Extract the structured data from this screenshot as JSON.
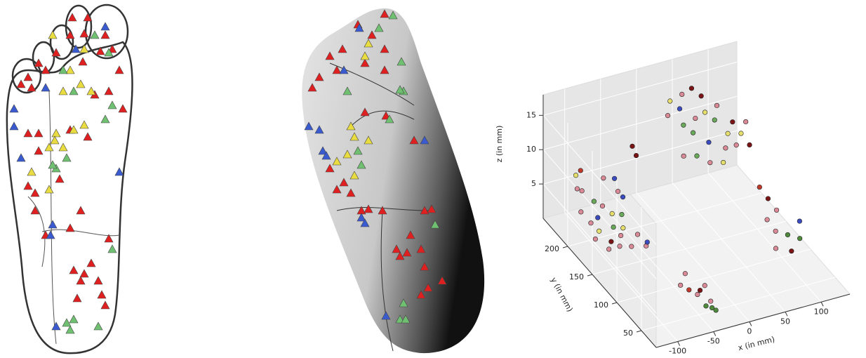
{
  "chart_data": {
    "type": "scatter3d",
    "xlabel": "x (in mm)",
    "ylabel": "y (in mm)",
    "zlabel": "z (in mm)",
    "xlim": [
      -130,
      140
    ],
    "ylim": [
      20,
      250
    ],
    "zlim": [
      0,
      18
    ],
    "xticks": [
      -100,
      -50,
      0,
      50,
      100
    ],
    "yticks": [
      50,
      100,
      150,
      200
    ],
    "zticks": [
      5,
      10,
      15
    ],
    "grid": true,
    "x": [
      -110,
      -105,
      -100,
      -95,
      -90,
      -115,
      -108,
      -100,
      -95,
      -85,
      -80,
      -75,
      -70,
      -65,
      -90,
      -85,
      -80,
      -72,
      -60,
      -55,
      -50,
      -112,
      -100,
      -60,
      -70,
      -58,
      -55,
      -50,
      -45,
      -40,
      -35,
      -30,
      -28,
      -45,
      -38,
      -33,
      -40,
      -38,
      -60,
      30,
      40,
      50,
      60,
      70,
      80,
      45,
      55,
      65,
      75,
      85,
      95,
      100,
      110,
      105,
      115,
      120,
      90,
      35,
      50,
      65,
      80,
      125,
      70,
      110,
      115,
      120,
      100,
      105,
      115,
      125,
      135,
      110,
      95
    ],
    "y": [
      210,
      220,
      215,
      225,
      205,
      195,
      185,
      180,
      190,
      195,
      180,
      190,
      175,
      185,
      170,
      160,
      165,
      155,
      160,
      150,
      155,
      170,
      160,
      200,
      215,
      210,
      80,
      70,
      60,
      50,
      45,
      55,
      70,
      85,
      65,
      40,
      200,
      195,
      190,
      230,
      240,
      235,
      245,
      240,
      235,
      220,
      215,
      225,
      220,
      215,
      225,
      210,
      215,
      200,
      205,
      195,
      200,
      205,
      200,
      195,
      190,
      210,
      205,
      160,
      150,
      140,
      130,
      120,
      110,
      100,
      115,
      95,
      105
    ],
    "z": [
      7,
      8,
      6,
      8,
      5,
      5,
      4,
      3,
      4,
      5,
      3,
      4,
      3,
      4,
      2,
      2,
      3,
      2,
      3,
      2,
      2,
      3,
      2,
      6,
      7,
      7,
      2,
      2,
      2,
      1,
      1,
      1,
      2,
      3,
      2,
      1,
      12,
      11,
      6,
      12,
      13,
      12,
      13,
      14,
      13,
      11,
      10,
      11,
      12,
      11,
      12,
      9,
      10,
      8,
      9,
      8,
      8,
      8,
      8,
      7,
      7,
      10,
      9,
      5,
      4,
      3,
      3,
      2,
      2,
      2,
      3,
      1,
      1
    ],
    "colors": [
      "#d98a96",
      "#e6df6e",
      "#d98a96",
      "#c0392b",
      "#6aa85a",
      "#d98a96",
      "#d98a96",
      "#e6df6e",
      "#3b4cc0",
      "#d98a96",
      "#6aa85a",
      "#e6df6e",
      "#e6df6e",
      "#6aa85a",
      "#7b1414",
      "#d98a96",
      "#d98a96",
      "#d98a96",
      "#d98a96",
      "#d98a96",
      "#3b4cc0",
      "#d98a96",
      "#d98a96",
      "#d98a96",
      "#d98a96",
      "#3b4cc0",
      "#d98a96",
      "#c0392b",
      "#d98a96",
      "#4f8a3c",
      "#4f8a3c",
      "#d98a96",
      "#d98a96",
      "#d98a96",
      "#7b1414",
      "#4f8a3c",
      "#7b1414",
      "#7b1414",
      "#3b4cc0",
      "#d98a96",
      "#e6df6e",
      "#3b4cc0",
      "#d98a96",
      "#7b1414",
      "#7b1414",
      "#6aa85a",
      "#6aa85a",
      "#d98a96",
      "#e6df6e",
      "#6aa85a",
      "#d98a96",
      "#e6df6e",
      "#7b1414",
      "#d98a96",
      "#e6df6e",
      "#7b1414",
      "#d98a96",
      "#d98a96",
      "#6aa85a",
      "#d98a96",
      "#e6df6e",
      "#d98a96",
      "#3b4cc0",
      "#c0392b",
      "#7b1414",
      "#d98a96",
      "#d98a96",
      "#d98a96",
      "#4f8a3c",
      "#4f8a3c",
      "#3b4cc0",
      "#7b1414",
      "#d98a96"
    ]
  }
}
